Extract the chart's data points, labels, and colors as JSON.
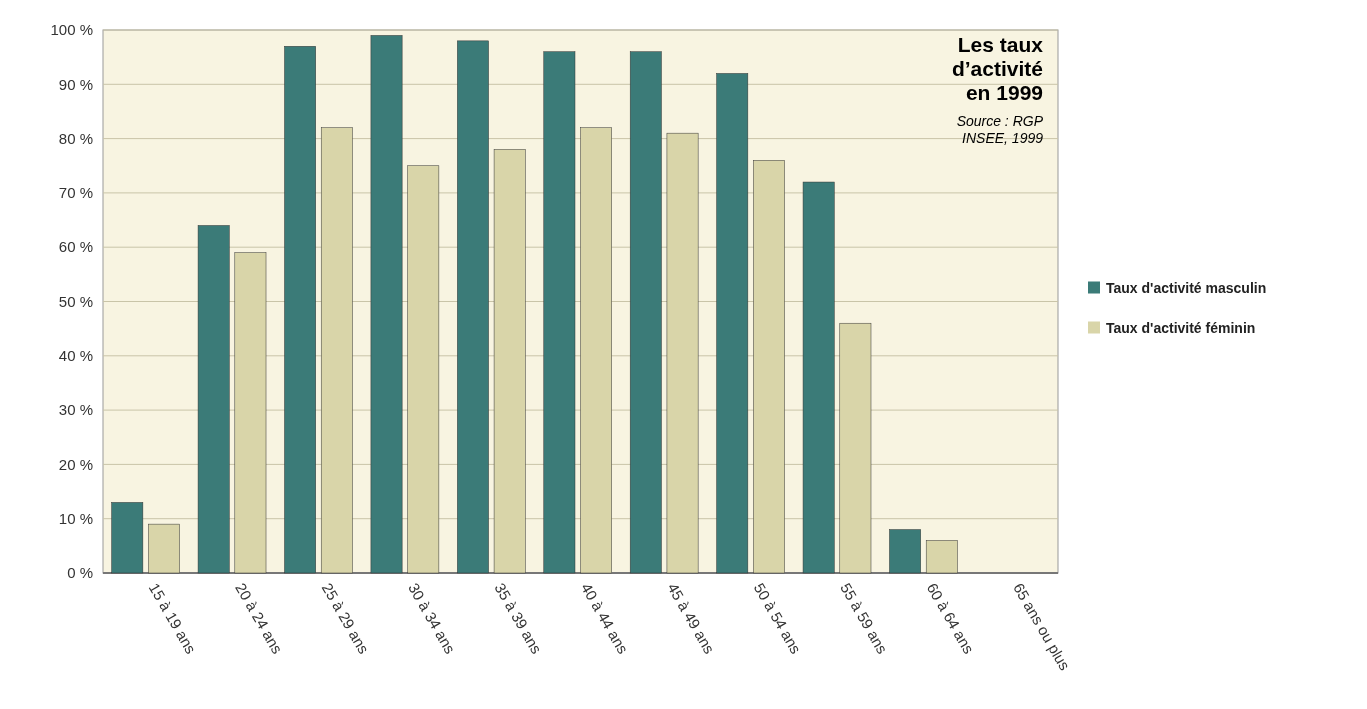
{
  "chart_data": {
    "type": "bar",
    "title": "Les taux d’activité en 1999",
    "annotations": [
      "Source : RGP INSEE, 1999"
    ],
    "categories": [
      "15 à 19 ans",
      "20 à 24 ans",
      "25 à 29 ans",
      "30 à 34 ans",
      "35 à 39 ans",
      "40 à 44 ans",
      "45 à 49 ans",
      "50 à 54 ans",
      "55 à 59 ans",
      "60 à 64 ans",
      "65 ans ou plus"
    ],
    "series": [
      {
        "name": "Taux d'activité masculin",
        "color": "#3b7b78",
        "values": [
          13,
          64,
          97,
          99,
          98,
          96,
          96,
          92,
          72,
          8,
          0
        ]
      },
      {
        "name": "Taux d'activité féminin",
        "color": "#d9d5a9",
        "values": [
          9,
          59,
          82,
          75,
          78,
          82,
          81,
          76,
          46,
          6,
          0
        ]
      }
    ],
    "ylim": [
      0,
      100
    ],
    "yticks": [
      {
        "value": 0,
        "label": "0 %"
      },
      {
        "value": 10,
        "label": "10 %"
      },
      {
        "value": 20,
        "label": "20 %"
      },
      {
        "value": 30,
        "label": "30 %"
      },
      {
        "value": 40,
        "label": "40 %"
      },
      {
        "value": 50,
        "label": "50 %"
      },
      {
        "value": 60,
        "label": "60 %"
      },
      {
        "value": 70,
        "label": "70 %"
      },
      {
        "value": 80,
        "label": "80 %"
      },
      {
        "value": 90,
        "label": "90 %"
      },
      {
        "value": 100,
        "label": "100 %"
      }
    ],
    "grid": "y",
    "legend": "right"
  }
}
